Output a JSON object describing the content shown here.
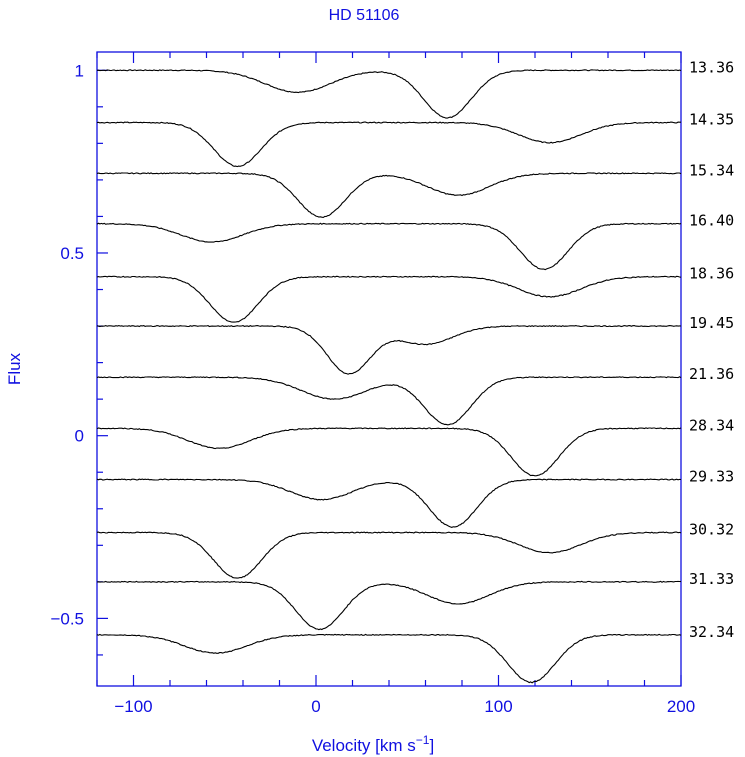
{
  "chart_data": {
    "type": "line",
    "title": "HD 51106",
    "xlabel": "Velocity [km s",
    "xlabel_sup": "−1",
    "xlabel_close": "]",
    "ylabel": "Flux",
    "xlim": [
      -120,
      200
    ],
    "ylim": [
      -0.685,
      1.05
    ],
    "xticks": [
      -100,
      0,
      100,
      200
    ],
    "xtick_labels": [
      "−100",
      "0",
      "100",
      "200"
    ],
    "yticks": [
      1,
      0.5,
      0,
      -0.5
    ],
    "ytick_labels": [
      "1",
      "0.5",
      "0",
      "−0.5"
    ],
    "axis_color": "#1010e0",
    "line_color": "#000000",
    "series": [
      {
        "name": "13.36",
        "baseline": 1.0,
        "dips": [
          {
            "v": -10,
            "depth": 0.06,
            "sigma": 18
          },
          {
            "v": 72,
            "depth": 0.13,
            "sigma": 13
          }
        ]
      },
      {
        "name": "14.35",
        "baseline": 0.857,
        "dips": [
          {
            "v": -43,
            "depth": 0.12,
            "sigma": 13
          },
          {
            "v": 128,
            "depth": 0.055,
            "sigma": 17
          }
        ]
      },
      {
        "name": "15.34",
        "baseline": 0.718,
        "dips": [
          {
            "v": 3,
            "depth": 0.12,
            "sigma": 13
          },
          {
            "v": 78,
            "depth": 0.06,
            "sigma": 17
          }
        ]
      },
      {
        "name": "16.40",
        "baseline": 0.58,
        "dips": [
          {
            "v": -57,
            "depth": 0.05,
            "sigma": 17
          },
          {
            "v": 125,
            "depth": 0.125,
            "sigma": 13
          }
        ]
      },
      {
        "name": "18.36",
        "baseline": 0.435,
        "dips": [
          {
            "v": -45,
            "depth": 0.125,
            "sigma": 13
          },
          {
            "v": 128,
            "depth": 0.055,
            "sigma": 17
          }
        ]
      },
      {
        "name": "19.45",
        "baseline": 0.3,
        "dips": [
          {
            "v": 18,
            "depth": 0.13,
            "sigma": 12
          },
          {
            "v": 60,
            "depth": 0.05,
            "sigma": 15
          }
        ]
      },
      {
        "name": "21.36",
        "baseline": 0.16,
        "dips": [
          {
            "v": 10,
            "depth": 0.06,
            "sigma": 18
          },
          {
            "v": 72,
            "depth": 0.13,
            "sigma": 13
          }
        ]
      },
      {
        "name": "28.34",
        "baseline": 0.02,
        "dips": [
          {
            "v": -53,
            "depth": 0.055,
            "sigma": 17
          },
          {
            "v": 120,
            "depth": 0.13,
            "sigma": 13
          }
        ]
      },
      {
        "name": "29.33",
        "baseline": -0.12,
        "dips": [
          {
            "v": 3,
            "depth": 0.055,
            "sigma": 17
          },
          {
            "v": 75,
            "depth": 0.13,
            "sigma": 13
          }
        ]
      },
      {
        "name": "30.32",
        "baseline": -0.265,
        "dips": [
          {
            "v": -43,
            "depth": 0.125,
            "sigma": 13
          },
          {
            "v": 128,
            "depth": 0.055,
            "sigma": 17
          }
        ]
      },
      {
        "name": "31.33",
        "baseline": -0.4,
        "dips": [
          {
            "v": 2,
            "depth": 0.13,
            "sigma": 13
          },
          {
            "v": 78,
            "depth": 0.06,
            "sigma": 17
          }
        ]
      },
      {
        "name": "32.34",
        "baseline": -0.545,
        "dips": [
          {
            "v": -55,
            "depth": 0.05,
            "sigma": 17
          },
          {
            "v": 118,
            "depth": 0.13,
            "sigma": 13
          }
        ]
      }
    ]
  }
}
